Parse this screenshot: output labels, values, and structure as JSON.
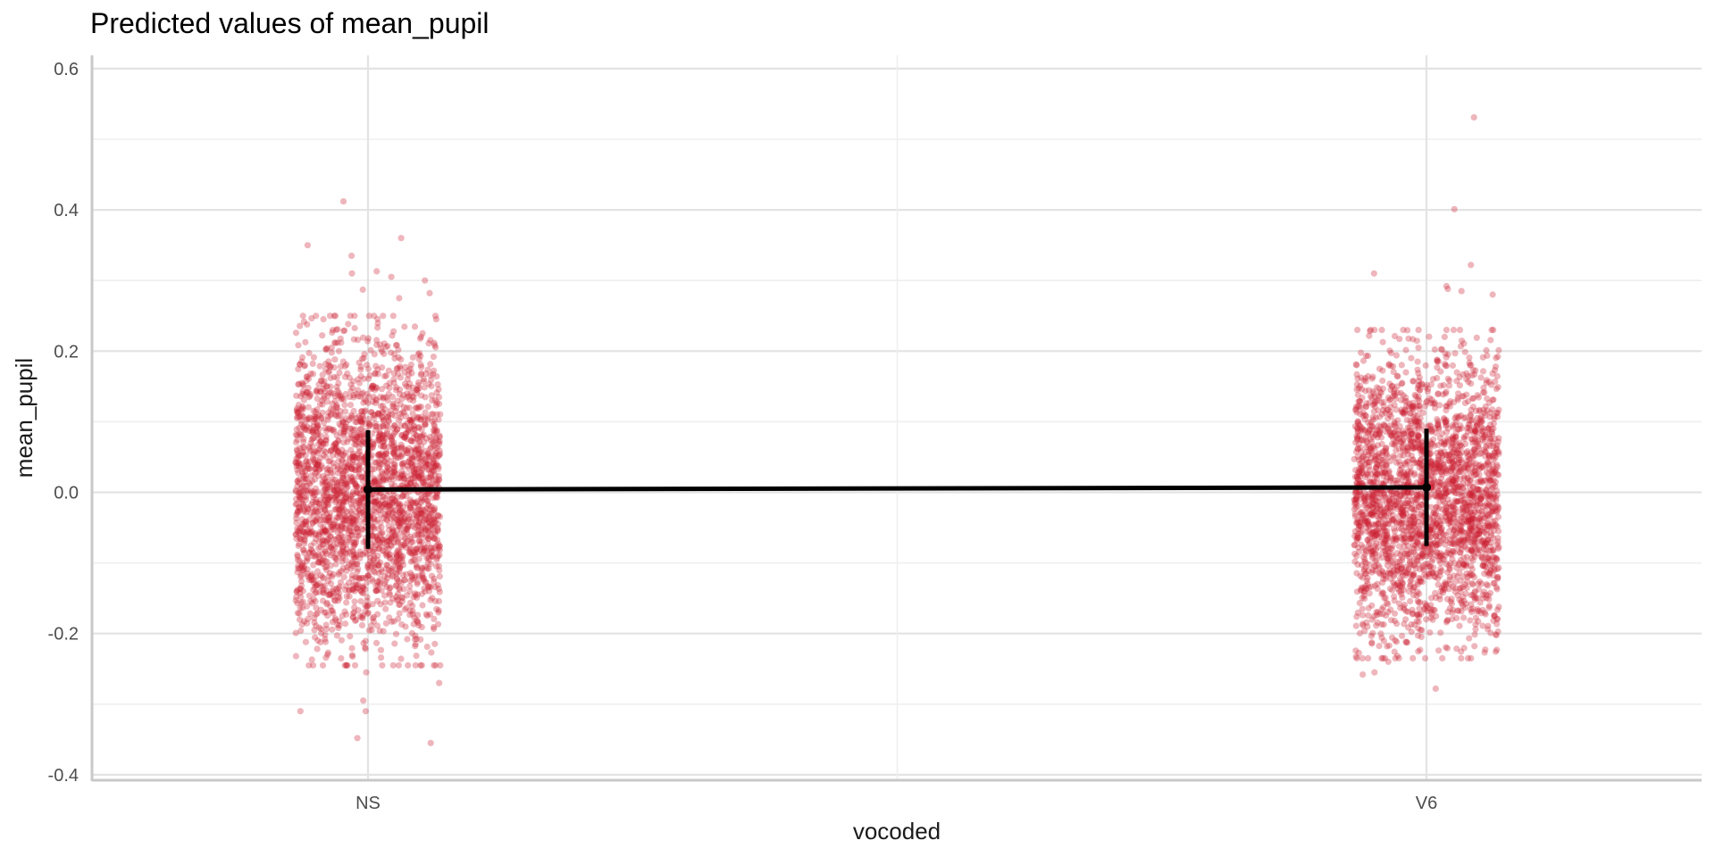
{
  "chart_data": {
    "type": "scatter",
    "title": "Predicted values of mean_pupil",
    "xlabel": "vocoded",
    "ylabel": "mean_pupil",
    "categories": [
      "NS",
      "V6"
    ],
    "ylim": [
      -0.41,
      0.62
    ],
    "y_ticks": [
      "-0.4",
      "-0.2",
      "0.0",
      "0.2",
      "0.4",
      "0.6"
    ],
    "grid": true,
    "legend": "none",
    "point_color": "#cc2233",
    "line_color": "#000000",
    "predicted": [
      {
        "category": "NS",
        "value": 0.004,
        "ci_low": -0.08,
        "ci_high": 0.088
      },
      {
        "category": "V6",
        "value": 0.007,
        "ci_low": -0.076,
        "ci_high": 0.09
      }
    ],
    "raw_points": {
      "NS": {
        "bulk_low": -0.235,
        "bulk_high": 0.235,
        "outliers": [
          0.412,
          0.36,
          0.35,
          0.335,
          0.313,
          0.31,
          0.305,
          0.3,
          0.287,
          0.282,
          0.275,
          -0.255,
          -0.27,
          -0.295,
          -0.31,
          -0.31,
          -0.348,
          -0.355
        ]
      },
      "V6": {
        "bulk_low": -0.225,
        "bulk_high": 0.215,
        "outliers": [
          0.531,
          0.401,
          0.322,
          0.31,
          0.292,
          0.288,
          0.285,
          0.28,
          -0.24,
          -0.255,
          -0.258,
          -0.278
        ]
      }
    }
  }
}
